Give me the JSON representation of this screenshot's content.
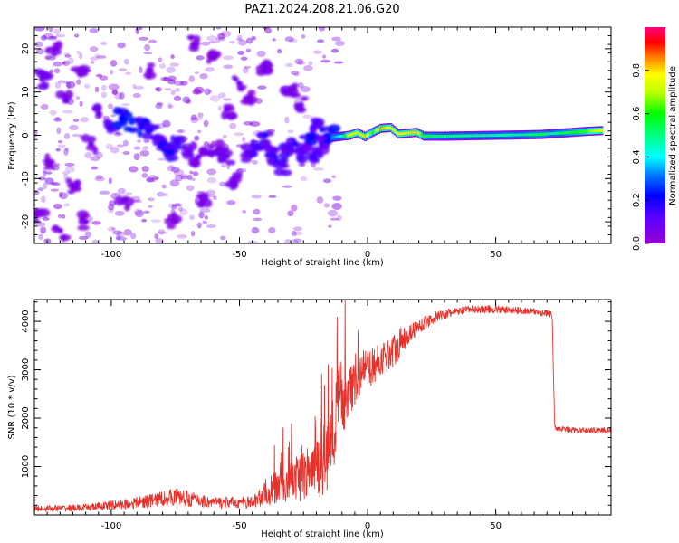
{
  "figure": {
    "title": "PAZ1.2024.208.21.06.G20"
  },
  "chart_data": [
    {
      "type": "heatmap",
      "name": "spectrogram",
      "xlabel": "Height of straight line (km)",
      "ylabel": "Frequency (Hz)",
      "xlim": [
        -130,
        95
      ],
      "ylim": [
        -25,
        25
      ],
      "x_ticks": [
        -100,
        -50,
        0,
        50
      ],
      "y_ticks": [
        20,
        10,
        0,
        -10,
        -20
      ],
      "colorbar": {
        "label": "Normalized spectral amplitude",
        "range": [
          0,
          1
        ],
        "ticks": [
          "0.0",
          "0.2",
          "0.4",
          "0.6",
          "0.8"
        ],
        "colormap": "gist_rainbow (purple→blue→cyan→green→yellow→orange→red→magenta)"
      },
      "blobs": [
        {
          "x": -127,
          "y": 13,
          "amp": 0.08
        },
        {
          "x": -122,
          "y": 20,
          "amp": 0.06
        },
        {
          "x": -118,
          "y": 8,
          "amp": 0.07
        },
        {
          "x": -112,
          "y": 14,
          "amp": 0.06
        },
        {
          "x": -125,
          "y": -6,
          "amp": 0.05
        },
        {
          "x": -115,
          "y": -12,
          "amp": 0.06
        },
        {
          "x": -108,
          "y": -2,
          "amp": 0.07
        },
        {
          "x": -128,
          "y": -18,
          "amp": 0.05
        },
        {
          "x": -120,
          "y": -22,
          "amp": 0.05
        },
        {
          "x": -105,
          "y": 5,
          "amp": 0.08
        },
        {
          "x": -100,
          "y": 2,
          "amp": 0.15
        },
        {
          "x": -96,
          "y": 4,
          "amp": 0.22
        },
        {
          "x": -92,
          "y": 3,
          "amp": 0.25
        },
        {
          "x": -88,
          "y": 2,
          "amp": 0.2
        },
        {
          "x": -85,
          "y": 1,
          "amp": 0.18
        },
        {
          "x": -82,
          "y": -1,
          "amp": 0.12
        },
        {
          "x": -79,
          "y": -3,
          "amp": 0.2
        },
        {
          "x": -77,
          "y": -4,
          "amp": 0.22
        },
        {
          "x": -74,
          "y": -2,
          "amp": 0.14
        },
        {
          "x": -70,
          "y": -4,
          "amp": 0.1
        },
        {
          "x": -66,
          "y": -5,
          "amp": 0.09
        },
        {
          "x": -62,
          "y": -4,
          "amp": 0.08
        },
        {
          "x": -58,
          "y": -3,
          "amp": 0.07
        },
        {
          "x": -55,
          "y": -5,
          "amp": 0.09
        },
        {
          "x": -52,
          "y": -11,
          "amp": 0.08
        },
        {
          "x": -50,
          "y": 12,
          "amp": 0.07
        },
        {
          "x": -46,
          "y": 9,
          "amp": 0.06
        },
        {
          "x": -47,
          "y": -4,
          "amp": 0.1
        },
        {
          "x": -44,
          "y": -3,
          "amp": 0.14
        },
        {
          "x": -40,
          "y": 0,
          "amp": 0.18
        },
        {
          "x": -38,
          "y": -3,
          "amp": 0.12
        },
        {
          "x": -36,
          "y": -5,
          "amp": 0.16
        },
        {
          "x": -33,
          "y": -7,
          "amp": 0.12
        },
        {
          "x": -31,
          "y": -3,
          "amp": 0.15
        },
        {
          "x": -28,
          "y": -2,
          "amp": 0.18
        },
        {
          "x": -25,
          "y": -4,
          "amp": 0.12
        },
        {
          "x": -23,
          "y": 0,
          "amp": 0.2
        },
        {
          "x": -21,
          "y": -5,
          "amp": 0.16
        },
        {
          "x": -20,
          "y": 3,
          "amp": 0.14
        },
        {
          "x": -18,
          "y": -2,
          "amp": 0.12
        },
        {
          "x": -16,
          "y": 0,
          "amp": 0.2
        },
        {
          "x": -14,
          "y": 0,
          "amp": 0.25
        },
        {
          "x": -55,
          "y": 6,
          "amp": 0.06
        },
        {
          "x": -60,
          "y": 18,
          "amp": 0.05
        },
        {
          "x": -68,
          "y": 21,
          "amp": 0.05
        },
        {
          "x": -75,
          "y": -20,
          "amp": 0.05
        },
        {
          "x": -85,
          "y": 15,
          "amp": 0.05
        },
        {
          "x": -95,
          "y": -15,
          "amp": 0.05
        },
        {
          "x": -110,
          "y": -20,
          "amp": 0.05
        },
        {
          "x": -64,
          "y": -15,
          "amp": 0.06
        },
        {
          "x": -40,
          "y": 16,
          "amp": 0.06
        },
        {
          "x": -30,
          "y": 10,
          "amp": 0.07
        },
        {
          "x": -26,
          "y": 7,
          "amp": 0.08
        }
      ],
      "ridge": [
        {
          "x": -14,
          "y": -0.5,
          "amp": 0.3
        },
        {
          "x": -10,
          "y": -0.2,
          "amp": 0.45
        },
        {
          "x": -7,
          "y": 0.0,
          "amp": 0.8
        },
        {
          "x": -4,
          "y": 0.6,
          "amp": 0.7
        },
        {
          "x": -1,
          "y": -0.3,
          "amp": 0.82
        },
        {
          "x": 2,
          "y": 0.7,
          "amp": 0.6
        },
        {
          "x": 5,
          "y": 1.6,
          "amp": 0.85
        },
        {
          "x": 9,
          "y": 1.8,
          "amp": 0.75
        },
        {
          "x": 12,
          "y": 0.3,
          "amp": 0.78
        },
        {
          "x": 16,
          "y": 0.5,
          "amp": 0.8
        },
        {
          "x": 19,
          "y": 0.7,
          "amp": 0.82
        },
        {
          "x": 22,
          "y": -0.2,
          "amp": 0.55
        },
        {
          "x": 30,
          "y": -0.2,
          "amp": 0.5
        },
        {
          "x": 40,
          "y": -0.1,
          "amp": 0.5
        },
        {
          "x": 50,
          "y": 0.0,
          "amp": 0.48
        },
        {
          "x": 60,
          "y": 0.1,
          "amp": 0.5
        },
        {
          "x": 68,
          "y": 0.2,
          "amp": 0.55
        },
        {
          "x": 72,
          "y": 0.4,
          "amp": 0.5
        },
        {
          "x": 78,
          "y": 0.6,
          "amp": 0.55
        },
        {
          "x": 85,
          "y": 0.9,
          "amp": 0.62
        },
        {
          "x": 92,
          "y": 1.1,
          "amp": 0.8
        }
      ]
    },
    {
      "type": "line",
      "name": "snr",
      "xlabel": "Height of straight line (km)",
      "ylabel": "SNR (10 * v/v)",
      "xlim": [
        -130,
        95
      ],
      "ylim": [
        0,
        4450
      ],
      "x_ticks": [
        -100,
        -50,
        0,
        50
      ],
      "y_ticks": [
        1000,
        2000,
        3000,
        4000
      ],
      "color": "#e8312a",
      "trend": {
        "x": [
          -130,
          -110,
          -90,
          -75,
          -60,
          -45,
          -38,
          -30,
          -20,
          -15,
          -12,
          -8,
          -4,
          0,
          5,
          10,
          15,
          20,
          25,
          30,
          35,
          40,
          50,
          60,
          65,
          72,
          73,
          80,
          95
        ],
        "mean": [
          130,
          150,
          250,
          380,
          250,
          260,
          500,
          700,
          900,
          1200,
          2200,
          2600,
          2900,
          3000,
          3200,
          3400,
          3700,
          3900,
          4050,
          4150,
          4200,
          4250,
          4250,
          4220,
          4200,
          4150,
          1800,
          1750,
          1750
        ],
        "spread": [
          60,
          70,
          120,
          180,
          120,
          120,
          300,
          450,
          600,
          700,
          900,
          700,
          500,
          400,
          350,
          350,
          250,
          150,
          120,
          100,
          80,
          80,
          80,
          70,
          70,
          70,
          60,
          60,
          60
        ]
      }
    }
  ]
}
